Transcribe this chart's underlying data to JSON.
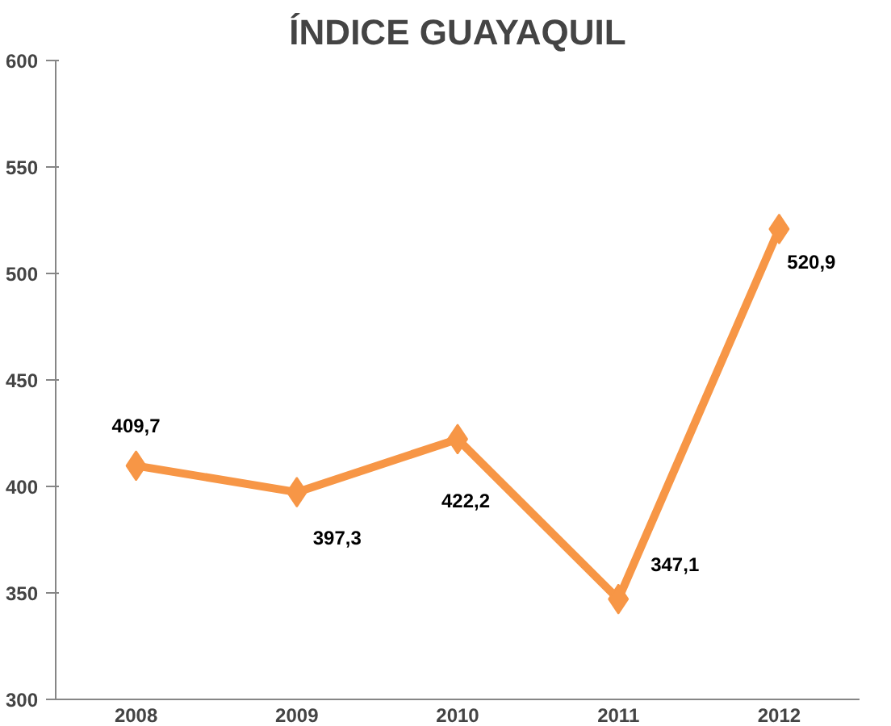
{
  "chart_data": {
    "type": "line",
    "title": "ÍNDICE GUAYAQUIL",
    "categories": [
      "2008",
      "2009",
      "2010",
      "2011",
      "2012"
    ],
    "series": [
      {
        "color": "#f79646",
        "values": [
          409.7,
          397.3,
          422.2,
          347.1,
          520.9
        ],
        "value_labels": [
          "409,7",
          "397,3",
          "422,2",
          "347,1",
          "520,9"
        ]
      }
    ],
    "ylim": [
      300,
      600
    ],
    "yticks": [
      300,
      350,
      400,
      450,
      500,
      550,
      600
    ],
    "grid": false,
    "marker": "diamond",
    "line_style": "solid"
  }
}
